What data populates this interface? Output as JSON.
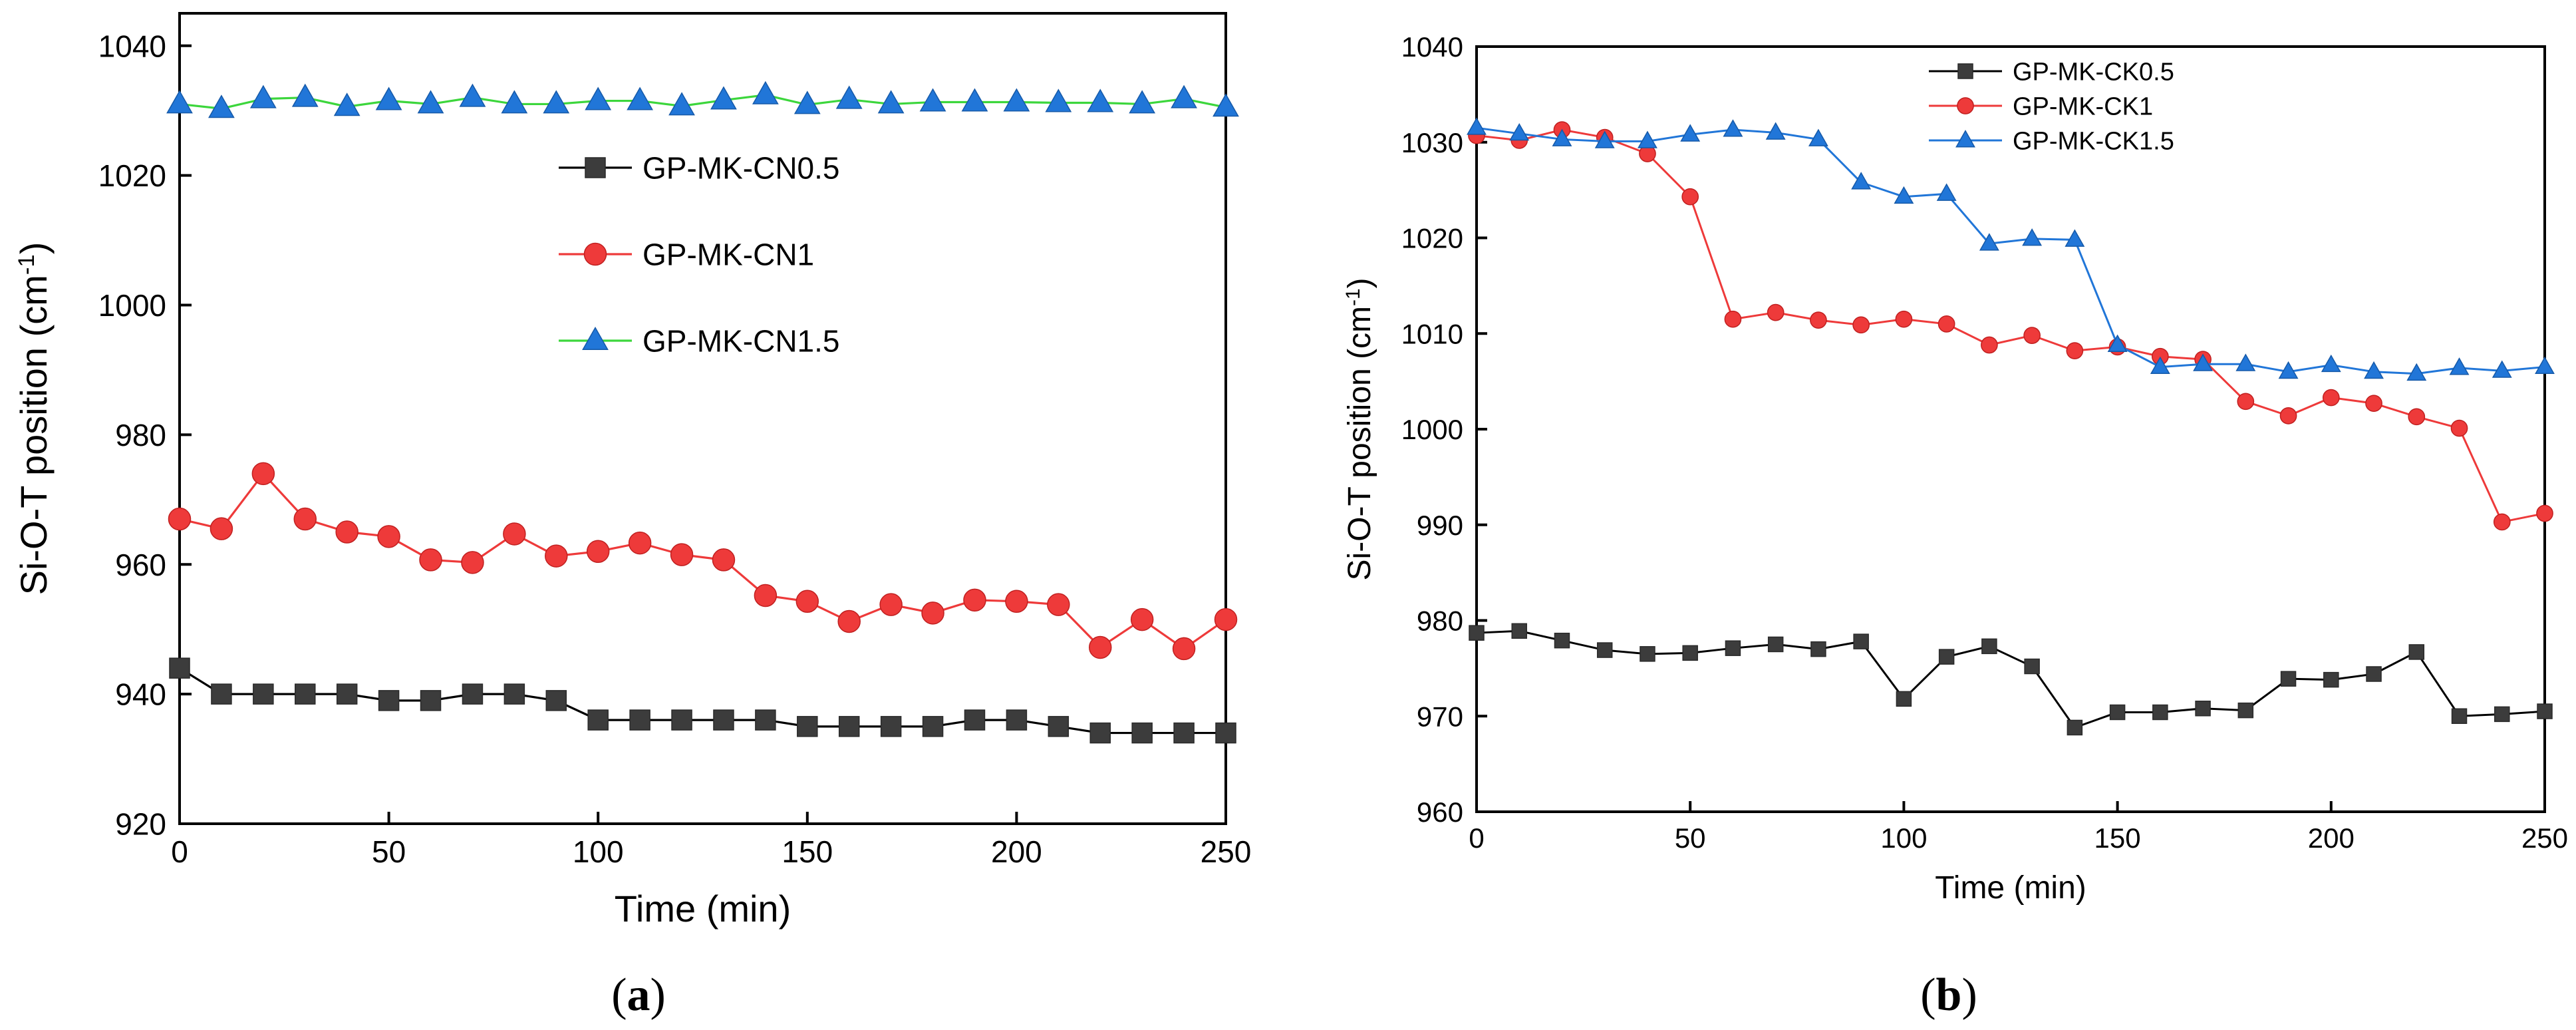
{
  "chart_data": [
    {
      "type": "line",
      "panel_label": {
        "open": "(",
        "letter": "a",
        "close": ")"
      },
      "xlabel": "Time (min)",
      "ylabel": {
        "main": "Si-O-T position (cm",
        "sup": "-1",
        "close": ")"
      },
      "xlim": [
        0,
        250
      ],
      "ylim": [
        920,
        1045
      ],
      "xticks": [
        0,
        50,
        100,
        150,
        200,
        250
      ],
      "yticks": [
        920,
        940,
        960,
        980,
        1000,
        1020,
        1040
      ],
      "legend_position": "upper-center",
      "x": [
        0,
        10,
        20,
        30,
        40,
        50,
        60,
        70,
        80,
        90,
        100,
        110,
        120,
        130,
        140,
        150,
        160,
        170,
        180,
        190,
        200,
        210,
        220,
        230,
        240,
        250
      ],
      "series": [
        {
          "name": "GP-MK-CN0.5",
          "marker": "square",
          "color": "#3c3c3c",
          "line_color": "#000000",
          "values": [
            944,
            940,
            940,
            940,
            940,
            939,
            939,
            940,
            940,
            939,
            936,
            936,
            936,
            936,
            936,
            935,
            935,
            935,
            935,
            936,
            936,
            935,
            934,
            934,
            934,
            934
          ]
        },
        {
          "name": "GP-MK-CN1",
          "marker": "circle",
          "color": "#ee3a3a",
          "line_color": "#ee3a3a",
          "values": [
            967,
            965.5,
            974,
            967,
            965,
            964.3,
            960.7,
            960.3,
            964.7,
            961.3,
            962,
            963.3,
            961.5,
            960.7,
            955.2,
            954.3,
            951.2,
            953.8,
            952.5,
            954.5,
            954.3,
            953.8,
            947.2,
            951.5,
            947,
            951.5
          ]
        },
        {
          "name": "GP-MK-CN1.5",
          "marker": "triangle",
          "color": "#2176d8",
          "line_color": "#3cd63c",
          "values": [
            1031,
            1030.3,
            1031.8,
            1032,
            1030.6,
            1031.5,
            1031,
            1032,
            1031,
            1031,
            1031.5,
            1031.5,
            1030.7,
            1031.6,
            1032.4,
            1030.9,
            1031.7,
            1031,
            1031.3,
            1031.3,
            1031.3,
            1031.2,
            1031.2,
            1031,
            1031.8,
            1030.5
          ]
        }
      ]
    },
    {
      "type": "line",
      "panel_label": {
        "open": "(",
        "letter": "b",
        "close": ")"
      },
      "xlabel": "Time (min)",
      "ylabel": {
        "main": "Si-O-T position (cm",
        "sup": "-1",
        "close": ")"
      },
      "xlim": [
        0,
        250
      ],
      "ylim": [
        960,
        1040
      ],
      "xticks": [
        0,
        50,
        100,
        150,
        200,
        250
      ],
      "yticks": [
        960,
        970,
        980,
        990,
        1000,
        1010,
        1020,
        1030,
        1040
      ],
      "legend_position": "upper-center",
      "x": [
        0,
        10,
        20,
        30,
        40,
        50,
        60,
        70,
        80,
        90,
        100,
        110,
        120,
        130,
        140,
        150,
        160,
        170,
        180,
        190,
        200,
        210,
        220,
        230,
        240,
        250
      ],
      "series": [
        {
          "name": "GP-MK-CK0.5",
          "marker": "square",
          "color": "#3c3c3c",
          "line_color": "#000000",
          "values": [
            978.7,
            978.9,
            977.9,
            976.9,
            976.5,
            976.6,
            977.1,
            977.5,
            977,
            977.8,
            971.8,
            976.2,
            977.3,
            975.2,
            968.8,
            970.4,
            970.4,
            970.8,
            970.6,
            973.9,
            973.8,
            974.4,
            976.7,
            970,
            970.2,
            970.5
          ]
        },
        {
          "name": "GP-MK-CK1",
          "marker": "circle",
          "color": "#ee3a3a",
          "line_color": "#ee3a3a",
          "values": [
            1030.7,
            1030.2,
            1031.3,
            1030.5,
            1028.8,
            1024.3,
            1011.5,
            1012.2,
            1011.4,
            1010.9,
            1011.5,
            1011,
            1008.8,
            1009.8,
            1008.2,
            1008.6,
            1007.6,
            1007.3,
            1002.9,
            1001.4,
            1003.3,
            1002.7,
            1001.3,
            1000.1,
            990.3,
            991.2
          ]
        },
        {
          "name": "GP-MK-CK1.5",
          "marker": "triangle",
          "color": "#2176d8",
          "line_color": "#2176d8",
          "values": [
            1031.5,
            1030.9,
            1030.3,
            1030.1,
            1030.1,
            1030.8,
            1031.3,
            1031,
            1030.3,
            1025.8,
            1024.3,
            1024.6,
            1019.4,
            1019.9,
            1019.8,
            1008.8,
            1006.5,
            1006.8,
            1006.8,
            1006,
            1006.7,
            1006,
            1005.8,
            1006.4,
            1006.1,
            1006.5
          ]
        }
      ]
    }
  ]
}
